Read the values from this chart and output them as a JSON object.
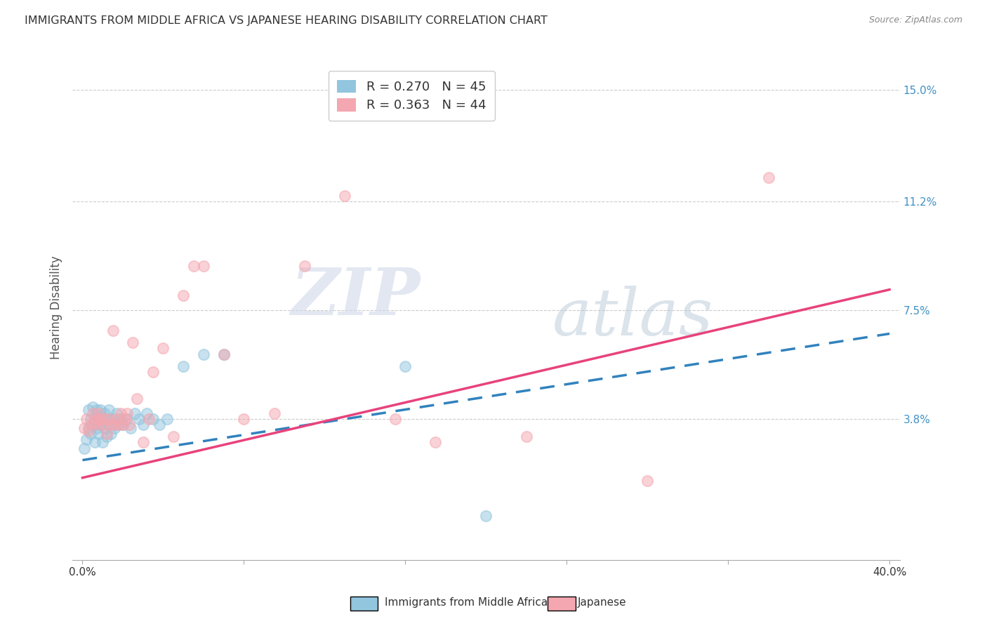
{
  "title": "IMMIGRANTS FROM MIDDLE AFRICA VS JAPANESE HEARING DISABILITY CORRELATION CHART",
  "source": "Source: ZipAtlas.com",
  "ylabel": "Hearing Disability",
  "ytick_labels": [
    "3.8%",
    "7.5%",
    "11.2%",
    "15.0%"
  ],
  "ytick_values": [
    0.038,
    0.075,
    0.112,
    0.15
  ],
  "xtick_values": [
    0.0,
    0.08,
    0.16,
    0.24,
    0.32,
    0.4
  ],
  "xtick_labels": [
    "0.0%",
    "",
    "",
    "",
    "",
    "40.0%"
  ],
  "xlim": [
    -0.005,
    0.405
  ],
  "ylim": [
    -0.01,
    0.162
  ],
  "legend_label1": "Immigrants from Middle Africa",
  "legend_label2": "Japanese",
  "blue_color": "#92c5de",
  "pink_color": "#f4a7b0",
  "blue_line_color": "#3182bd",
  "pink_line_color": "#e8427c",
  "watermark_zip": "ZIP",
  "watermark_atlas": "atlas",
  "blue_scatter_x": [
    0.001,
    0.002,
    0.003,
    0.003,
    0.004,
    0.004,
    0.005,
    0.005,
    0.006,
    0.006,
    0.007,
    0.007,
    0.008,
    0.008,
    0.009,
    0.009,
    0.01,
    0.01,
    0.011,
    0.011,
    0.012,
    0.012,
    0.013,
    0.013,
    0.014,
    0.015,
    0.016,
    0.017,
    0.018,
    0.019,
    0.02,
    0.022,
    0.024,
    0.026,
    0.028,
    0.03,
    0.032,
    0.035,
    0.038,
    0.042,
    0.05,
    0.06,
    0.07,
    0.16,
    0.2
  ],
  "blue_scatter_y": [
    0.028,
    0.031,
    0.035,
    0.041,
    0.033,
    0.038,
    0.036,
    0.042,
    0.03,
    0.038,
    0.035,
    0.041,
    0.033,
    0.039,
    0.036,
    0.041,
    0.03,
    0.038,
    0.035,
    0.04,
    0.032,
    0.038,
    0.036,
    0.041,
    0.033,
    0.038,
    0.035,
    0.04,
    0.036,
    0.038,
    0.036,
    0.038,
    0.035,
    0.04,
    0.038,
    0.036,
    0.04,
    0.038,
    0.036,
    0.038,
    0.056,
    0.06,
    0.06,
    0.056,
    0.005
  ],
  "pink_scatter_x": [
    0.001,
    0.002,
    0.003,
    0.004,
    0.005,
    0.006,
    0.007,
    0.008,
    0.008,
    0.009,
    0.01,
    0.011,
    0.012,
    0.013,
    0.014,
    0.015,
    0.016,
    0.017,
    0.018,
    0.019,
    0.02,
    0.021,
    0.022,
    0.023,
    0.025,
    0.027,
    0.03,
    0.033,
    0.035,
    0.04,
    0.045,
    0.05,
    0.055,
    0.06,
    0.07,
    0.08,
    0.095,
    0.11,
    0.13,
    0.155,
    0.175,
    0.22,
    0.28,
    0.34
  ],
  "pink_scatter_y": [
    0.035,
    0.038,
    0.034,
    0.036,
    0.04,
    0.037,
    0.038,
    0.036,
    0.04,
    0.038,
    0.036,
    0.038,
    0.033,
    0.038,
    0.036,
    0.068,
    0.036,
    0.038,
    0.036,
    0.04,
    0.036,
    0.038,
    0.04,
    0.036,
    0.064,
    0.045,
    0.03,
    0.038,
    0.054,
    0.062,
    0.032,
    0.08,
    0.09,
    0.09,
    0.06,
    0.038,
    0.04,
    0.09,
    0.114,
    0.038,
    0.03,
    0.032,
    0.017,
    0.12
  ],
  "blue_trend_x0": 0.0,
  "blue_trend_y0": 0.024,
  "blue_trend_x1": 0.4,
  "blue_trend_y1": 0.067,
  "pink_trend_x0": 0.0,
  "pink_trend_y0": 0.018,
  "pink_trend_x1": 0.4,
  "pink_trend_y1": 0.082
}
